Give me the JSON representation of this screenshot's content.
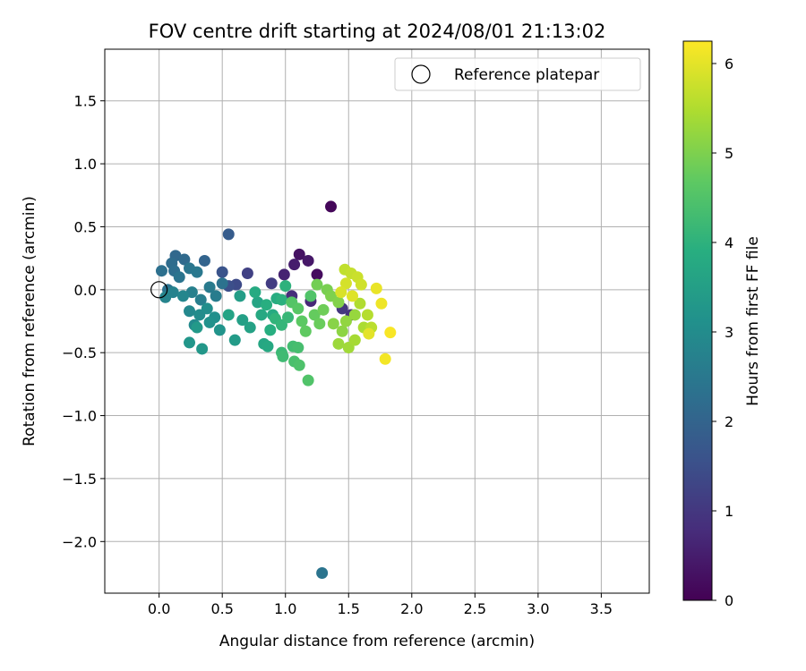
{
  "chart_data": {
    "type": "scatter",
    "title": "FOV centre drift starting at 2024/08/01 21:13:02",
    "xlabel": "Angular distance from reference (arcmin)",
    "ylabel": "Rotation from reference (arcmin)",
    "xlim": [
      -0.43,
      3.88
    ],
    "ylim": [
      -2.41,
      1.91
    ],
    "xticks": [
      0.0,
      0.5,
      1.0,
      1.5,
      2.0,
      2.5,
      3.0,
      3.5
    ],
    "xtick_labels": [
      "0.0",
      "0.5",
      "1.0",
      "1.5",
      "2.0",
      "2.5",
      "3.0",
      "3.5"
    ],
    "yticks": [
      -2.0,
      -1.5,
      -1.0,
      -0.5,
      0.0,
      0.5,
      1.0,
      1.5
    ],
    "ytick_labels": [
      "−2.0",
      "−1.5",
      "−1.0",
      "−0.5",
      "0.0",
      "0.5",
      "1.0",
      "1.5"
    ],
    "grid": true,
    "legend": {
      "placement": "top-right",
      "entries": [
        {
          "label": "Reference platepar",
          "marker": "open-circle"
        }
      ]
    },
    "colorbar": {
      "label": "Hours from first FF file",
      "colormap": "viridis",
      "range": [
        0,
        6.25
      ],
      "ticks": [
        0,
        1,
        2,
        3,
        4,
        5,
        6
      ],
      "tick_labels": [
        "0",
        "1",
        "2",
        "3",
        "4",
        "5",
        "6"
      ]
    },
    "reference_point": {
      "x": 0.0,
      "y": 0.0
    },
    "points": [
      [
        1.36,
        0.66,
        0.1
      ],
      [
        1.25,
        0.12,
        0.2
      ],
      [
        1.11,
        0.28,
        0.3
      ],
      [
        1.18,
        0.23,
        0.4
      ],
      [
        1.07,
        0.2,
        0.5
      ],
      [
        0.99,
        0.12,
        0.6
      ],
      [
        1.2,
        -0.09,
        0.7
      ],
      [
        1.05,
        -0.05,
        0.8
      ],
      [
        1.52,
        -0.2,
        0.9
      ],
      [
        1.45,
        -0.15,
        1.0
      ],
      [
        0.89,
        0.05,
        1.1
      ],
      [
        0.7,
        0.13,
        1.2
      ],
      [
        0.61,
        0.04,
        1.4
      ],
      [
        0.55,
        0.03,
        1.5
      ],
      [
        0.5,
        0.14,
        1.6
      ],
      [
        0.55,
        0.44,
        1.8
      ],
      [
        0.36,
        0.23,
        2.0
      ],
      [
        0.13,
        0.27,
        2.1
      ],
      [
        0.2,
        0.24,
        2.15
      ],
      [
        0.1,
        0.21,
        2.2
      ],
      [
        0.12,
        0.15,
        2.25
      ],
      [
        0.02,
        0.15,
        2.3
      ],
      [
        0.07,
        0.0,
        2.35
      ],
      [
        0.16,
        0.1,
        2.4
      ],
      [
        0.24,
        0.17,
        2.45
      ],
      [
        0.3,
        0.14,
        2.5
      ],
      [
        0.4,
        0.02,
        2.55
      ],
      [
        0.45,
        -0.05,
        2.6
      ],
      [
        0.5,
        0.05,
        2.35
      ],
      [
        0.33,
        -0.08,
        2.65
      ],
      [
        0.26,
        -0.02,
        2.7
      ],
      [
        0.11,
        -0.02,
        2.75
      ],
      [
        0.05,
        -0.06,
        2.8
      ],
      [
        0.19,
        -0.05,
        2.85
      ],
      [
        0.24,
        -0.17,
        2.9
      ],
      [
        0.28,
        -0.28,
        2.95
      ],
      [
        0.32,
        -0.2,
        3.0
      ],
      [
        0.38,
        -0.15,
        3.05
      ],
      [
        0.44,
        -0.22,
        3.1
      ],
      [
        0.4,
        -0.26,
        3.15
      ],
      [
        0.48,
        -0.32,
        3.2
      ],
      [
        0.24,
        -0.42,
        3.25
      ],
      [
        0.34,
        -0.47,
        3.3
      ],
      [
        0.3,
        -0.3,
        3.35
      ],
      [
        0.6,
        -0.4,
        3.4
      ],
      [
        0.64,
        -0.05,
        3.45
      ],
      [
        0.66,
        -0.24,
        3.5
      ],
      [
        0.72,
        -0.3,
        3.55
      ],
      [
        0.55,
        -0.2,
        3.6
      ],
      [
        0.78,
        -0.1,
        3.65
      ],
      [
        0.83,
        -0.43,
        3.7
      ],
      [
        0.86,
        -0.45,
        3.75
      ],
      [
        0.9,
        -0.2,
        3.8
      ],
      [
        0.93,
        -0.07,
        3.85
      ],
      [
        0.88,
        -0.32,
        3.9
      ],
      [
        0.97,
        -0.08,
        3.95
      ],
      [
        1.0,
        0.03,
        4.0
      ],
      [
        0.81,
        -0.2,
        3.75
      ],
      [
        0.76,
        -0.02,
        3.8
      ],
      [
        0.85,
        -0.12,
        3.9
      ],
      [
        0.92,
        -0.23,
        4.05
      ],
      [
        0.97,
        -0.28,
        4.1
      ],
      [
        1.02,
        -0.22,
        4.15
      ],
      [
        0.97,
        -0.5,
        4.2
      ],
      [
        0.98,
        -0.53,
        4.25
      ],
      [
        1.06,
        -0.45,
        4.3
      ],
      [
        1.1,
        -0.46,
        4.35
      ],
      [
        1.07,
        -0.57,
        4.4
      ],
      [
        1.11,
        -0.6,
        4.45
      ],
      [
        1.18,
        -0.72,
        4.5
      ],
      [
        1.05,
        -0.1,
        4.55
      ],
      [
        1.1,
        -0.15,
        4.6
      ],
      [
        1.13,
        -0.25,
        4.65
      ],
      [
        1.16,
        -0.33,
        4.7
      ],
      [
        1.23,
        -0.2,
        4.75
      ],
      [
        1.27,
        -0.27,
        4.8
      ],
      [
        1.3,
        -0.16,
        4.85
      ],
      [
        1.25,
        0.04,
        4.9
      ],
      [
        1.33,
        0.0,
        4.95
      ],
      [
        1.2,
        -0.05,
        4.5
      ],
      [
        1.36,
        -0.05,
        5.0
      ],
      [
        1.42,
        -0.1,
        5.05
      ],
      [
        1.38,
        -0.27,
        5.1
      ],
      [
        1.45,
        -0.33,
        5.15
      ],
      [
        1.48,
        -0.25,
        5.2
      ],
      [
        1.55,
        -0.2,
        5.25
      ],
      [
        1.42,
        -0.43,
        5.3
      ],
      [
        1.5,
        -0.46,
        5.35
      ],
      [
        1.55,
        -0.4,
        5.4
      ],
      [
        1.62,
        -0.3,
        5.45
      ],
      [
        1.59,
        -0.11,
        5.5
      ],
      [
        1.65,
        -0.2,
        5.55
      ],
      [
        1.68,
        -0.3,
        5.6
      ],
      [
        1.47,
        0.16,
        5.65
      ],
      [
        1.52,
        0.13,
        5.7
      ],
      [
        1.57,
        0.1,
        5.75
      ],
      [
        1.6,
        0.04,
        5.8
      ],
      [
        1.48,
        0.05,
        5.85
      ],
      [
        1.44,
        -0.02,
        5.9
      ],
      [
        1.53,
        -0.05,
        5.95
      ],
      [
        1.66,
        -0.35,
        6.0
      ],
      [
        1.72,
        0.01,
        6.05
      ],
      [
        1.76,
        -0.11,
        6.1
      ],
      [
        1.79,
        -0.55,
        6.15
      ],
      [
        1.83,
        -0.34,
        6.2
      ],
      [
        1.29,
        -2.25,
        2.4
      ]
    ]
  }
}
